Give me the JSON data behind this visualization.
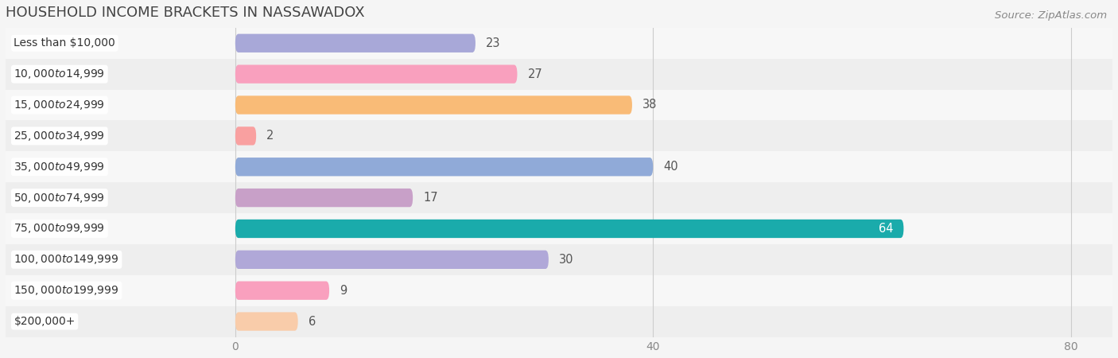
{
  "title": "HOUSEHOLD INCOME BRACKETS IN NASSAWADOX",
  "source": "Source: ZipAtlas.com",
  "categories": [
    "Less than $10,000",
    "$10,000 to $14,999",
    "$15,000 to $24,999",
    "$25,000 to $34,999",
    "$35,000 to $49,999",
    "$50,000 to $74,999",
    "$75,000 to $99,999",
    "$100,000 to $149,999",
    "$150,000 to $199,999",
    "$200,000+"
  ],
  "values": [
    23,
    27,
    38,
    2,
    40,
    17,
    64,
    30,
    9,
    6
  ],
  "bar_colors": [
    "#a8a8d8",
    "#f9a0be",
    "#f9bb77",
    "#f9a0a0",
    "#90aad8",
    "#c8a0c8",
    "#1aabab",
    "#b0a8d8",
    "#f9a0be",
    "#f9ccaa"
  ],
  "xlim_left": -22,
  "xlim_right": 84,
  "xticks": [
    0,
    40,
    80
  ],
  "background_color": "#f5f5f5",
  "row_bg_even": "#f7f7f7",
  "row_bg_odd": "#eeeeee",
  "grid_color": "#cccccc",
  "title_color": "#444444",
  "source_color": "#888888",
  "label_color": "#333333",
  "value_color_outside": "#555555",
  "value_color_inside": "#ffffff",
  "title_fontsize": 13,
  "source_fontsize": 9.5,
  "tick_fontsize": 10,
  "bar_label_fontsize": 10,
  "value_label_fontsize": 10.5,
  "bar_height": 0.6
}
